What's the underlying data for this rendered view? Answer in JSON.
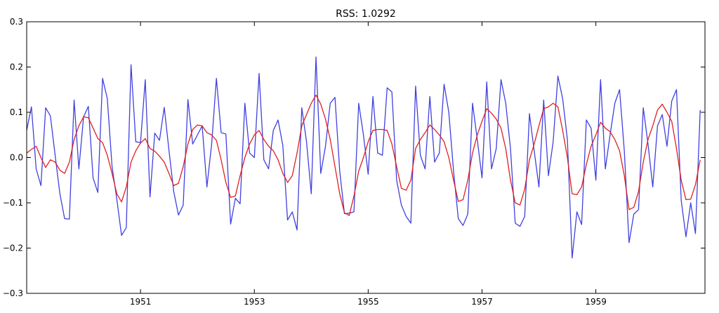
{
  "chart_data": {
    "type": "line",
    "title": "RSS: 1.0292",
    "xlabel": "",
    "ylabel": "",
    "xlim": [
      1949.0,
      1960.917
    ],
    "ylim": [
      -0.3,
      0.3
    ],
    "xticks": [
      {
        "value": 1951,
        "label": "1951"
      },
      {
        "value": 1953,
        "label": "1953"
      },
      {
        "value": 1955,
        "label": "1955"
      },
      {
        "value": 1957,
        "label": "1957"
      },
      {
        "value": 1959,
        "label": "1959"
      }
    ],
    "yticks": [
      {
        "value": 0.3,
        "label": "0.3"
      },
      {
        "value": 0.2,
        "label": "0.2"
      },
      {
        "value": 0.1,
        "label": "0.1"
      },
      {
        "value": 0.0,
        "label": "0.0"
      },
      {
        "value": -0.1,
        "label": "−0.1"
      },
      {
        "value": -0.2,
        "label": "−0.2"
      },
      {
        "value": -0.3,
        "label": "−0.3"
      }
    ],
    "grid": false,
    "x_start": "1949-01",
    "x_step": "1 month",
    "series": [
      {
        "color": "#4040e0",
        "values": [
          0.06,
          0.112,
          -0.025,
          -0.062,
          0.11,
          0.092,
          0.005,
          -0.08,
          -0.135,
          -0.136,
          0.127,
          -0.025,
          0.09,
          0.113,
          -0.045,
          -0.077,
          0.175,
          0.13,
          -0.02,
          -0.092,
          -0.172,
          -0.155,
          0.205,
          0.035,
          0.033,
          0.172,
          -0.087,
          0.054,
          0.038,
          0.111,
          0.016,
          -0.075,
          -0.127,
          -0.105,
          0.128,
          0.03,
          0.05,
          0.07,
          -0.065,
          0.03,
          0.175,
          0.055,
          0.052,
          -0.147,
          -0.09,
          -0.102,
          0.12,
          0.01,
          0.0,
          0.186,
          -0.005,
          -0.025,
          0.06,
          0.083,
          0.027,
          -0.138,
          -0.12,
          -0.16,
          0.11,
          0.035,
          -0.08,
          0.222,
          -0.035,
          0.025,
          0.12,
          0.133,
          -0.03,
          -0.124,
          -0.123,
          -0.12,
          0.12,
          0.05,
          -0.037,
          0.135,
          0.01,
          0.005,
          0.154,
          0.145,
          -0.05,
          -0.105,
          -0.13,
          -0.145,
          0.158,
          0.005,
          -0.025,
          0.135,
          -0.01,
          0.01,
          0.162,
          0.1,
          -0.03,
          -0.135,
          -0.15,
          -0.125,
          0.12,
          0.04,
          -0.045,
          0.167,
          -0.025,
          0.02,
          0.172,
          0.12,
          0.02,
          -0.145,
          -0.152,
          -0.13,
          0.097,
          0.015,
          -0.065,
          0.127,
          -0.04,
          0.035,
          0.18,
          0.13,
          0.04,
          -0.222,
          -0.12,
          -0.148,
          0.083,
          0.065,
          -0.05,
          0.172,
          -0.025,
          0.05,
          0.12,
          0.15,
          0.015,
          -0.188,
          -0.125,
          -0.115,
          0.11,
          0.03,
          -0.065,
          0.07,
          0.095,
          0.025,
          0.125,
          0.15,
          -0.095,
          -0.175,
          -0.1,
          -0.168,
          0.105
        ]
      },
      {
        "color": "#e02020",
        "values": [
          0.01,
          0.018,
          0.025,
          0.0,
          -0.022,
          -0.005,
          -0.01,
          -0.028,
          -0.035,
          -0.01,
          0.04,
          0.07,
          0.09,
          0.088,
          0.065,
          0.042,
          0.033,
          0.005,
          -0.035,
          -0.08,
          -0.098,
          -0.065,
          -0.01,
          0.015,
          0.032,
          0.042,
          0.02,
          0.014,
          0.003,
          -0.01,
          -0.035,
          -0.062,
          -0.057,
          -0.02,
          0.03,
          0.062,
          0.072,
          0.07,
          0.055,
          0.05,
          0.038,
          -0.005,
          -0.055,
          -0.088,
          -0.085,
          -0.04,
          0.0,
          0.03,
          0.05,
          0.06,
          0.04,
          0.025,
          0.015,
          -0.005,
          -0.035,
          -0.055,
          -0.04,
          0.01,
          0.07,
          0.095,
          0.12,
          0.138,
          0.118,
          0.085,
          0.04,
          -0.02,
          -0.08,
          -0.122,
          -0.128,
          -0.085,
          -0.03,
          0.0,
          0.035,
          0.06,
          0.062,
          0.062,
          0.06,
          0.03,
          -0.02,
          -0.068,
          -0.072,
          -0.05,
          0.02,
          0.04,
          0.055,
          0.072,
          0.062,
          0.05,
          0.035,
          0.0,
          -0.05,
          -0.097,
          -0.093,
          -0.05,
          0.01,
          0.05,
          0.08,
          0.108,
          0.098,
          0.085,
          0.065,
          0.02,
          -0.05,
          -0.1,
          -0.105,
          -0.07,
          -0.005,
          0.03,
          0.07,
          0.108,
          0.112,
          0.12,
          0.112,
          0.06,
          0.0,
          -0.08,
          -0.082,
          -0.065,
          -0.015,
          0.025,
          0.05,
          0.078,
          0.065,
          0.057,
          0.04,
          0.015,
          -0.04,
          -0.115,
          -0.11,
          -0.075,
          -0.01,
          0.04,
          0.07,
          0.105,
          0.118,
          0.1,
          0.08,
          0.02,
          -0.05,
          -0.093,
          -0.092,
          -0.06,
          -0.005
        ]
      }
    ]
  }
}
